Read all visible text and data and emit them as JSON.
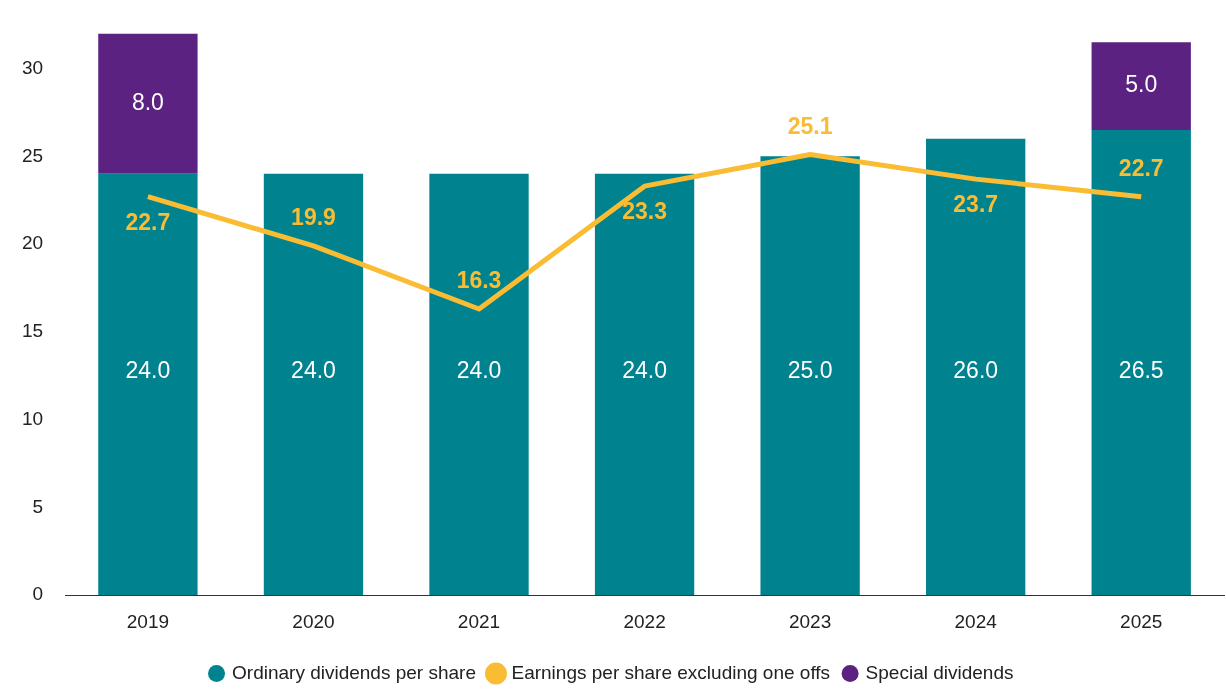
{
  "chart_data": {
    "type": "bar",
    "stacked": true,
    "categories": [
      "2019",
      "2020",
      "2021",
      "2022",
      "2023",
      "2024",
      "2025"
    ],
    "series": [
      {
        "name": "Ordinary dividends per share",
        "color": "#00828f",
        "values": [
          24.0,
          24.0,
          24.0,
          24.0,
          25.0,
          26.0,
          26.5
        ],
        "value_labels": [
          "24.0",
          "24.0",
          "24.0",
          "24.0",
          "25.0",
          "26.0",
          "26.5"
        ]
      },
      {
        "name": "Earnings per share excluding one offs",
        "type": "line",
        "color": "#f9bc33",
        "values": [
          22.7,
          19.9,
          16.3,
          23.3,
          25.1,
          23.7,
          22.7
        ],
        "value_labels": [
          "22.7",
          "19.9",
          "16.3",
          "23.3",
          "25.1",
          "23.7",
          "22.7"
        ]
      },
      {
        "name": "Special dividends",
        "color": "#5c2282",
        "values": [
          8.0,
          null,
          null,
          null,
          null,
          null,
          5.0
        ],
        "value_labels": [
          "8.0",
          null,
          null,
          null,
          null,
          null,
          "5.0"
        ]
      }
    ],
    "ylim": [
      0,
      32
    ],
    "yticks": [
      0,
      5,
      10,
      15,
      20,
      25,
      30
    ],
    "grid": false,
    "legend": "bottom",
    "marker": "none"
  }
}
